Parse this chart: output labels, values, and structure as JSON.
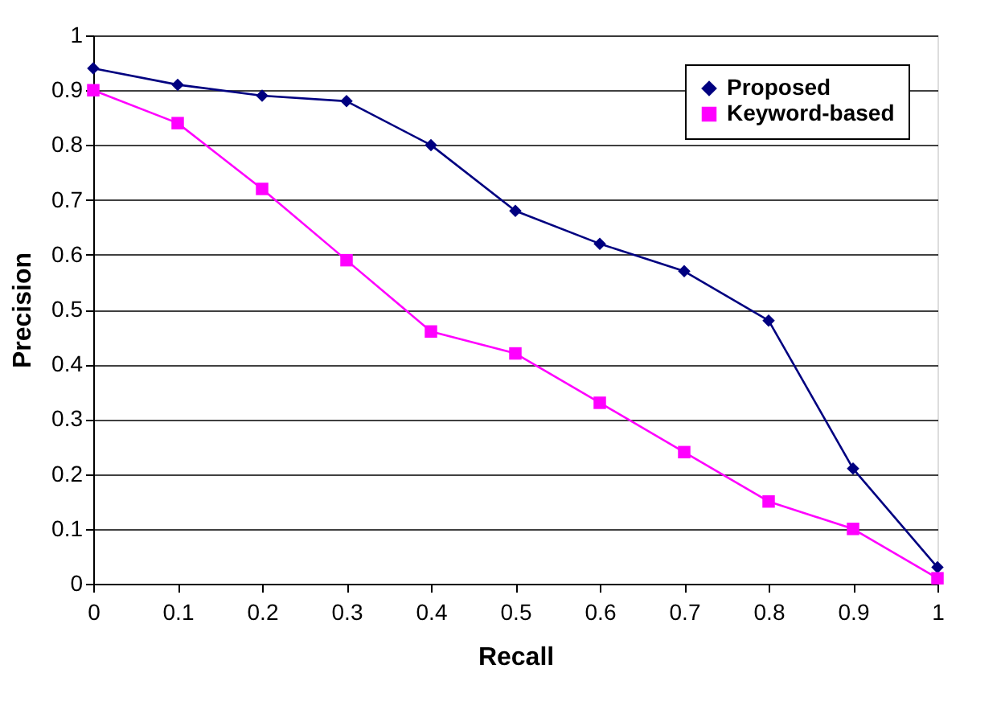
{
  "chart_data": {
    "type": "line",
    "xlabel": "Recall",
    "ylabel": "Precision",
    "x": [
      0,
      0.1,
      0.2,
      0.3,
      0.4,
      0.5,
      0.6,
      0.7,
      0.8,
      0.9,
      1
    ],
    "series": [
      {
        "name": "Proposed",
        "color": "#000080",
        "marker": "diamond",
        "values": [
          0.94,
          0.91,
          0.89,
          0.88,
          0.8,
          0.68,
          0.62,
          0.57,
          0.48,
          0.21,
          0.03
        ]
      },
      {
        "name": "Keyword-based",
        "color": "#ff00ff",
        "marker": "square",
        "values": [
          0.9,
          0.84,
          0.72,
          0.59,
          0.46,
          0.42,
          0.33,
          0.24,
          0.15,
          0.1,
          0.01
        ]
      }
    ],
    "xlim": [
      0,
      1
    ],
    "xticks": [
      0,
      0.1,
      0.2,
      0.3,
      0.4,
      0.5,
      0.6,
      0.7,
      0.8,
      0.9,
      1
    ],
    "ylim": [
      0,
      1
    ],
    "yticks": [
      0,
      0.1,
      0.2,
      0.3,
      0.4,
      0.5,
      0.6,
      0.7,
      0.8,
      0.9,
      1
    ],
    "grid": "y",
    "legend": "top right",
    "line_style": "solid"
  }
}
